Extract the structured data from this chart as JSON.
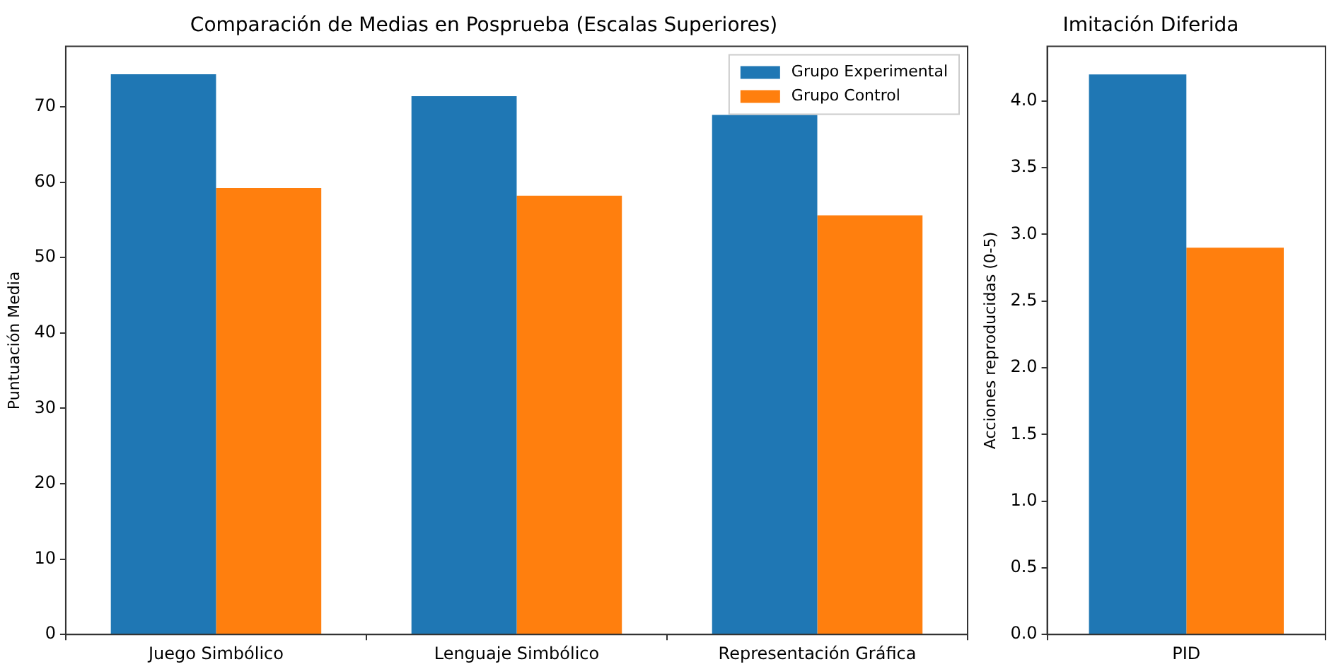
{
  "chart_data": [
    {
      "type": "bar",
      "title": "Comparación de Medias en Posprueba (Escalas Superiores)",
      "ylabel": "Puntuación Media",
      "categories": [
        "Juego Simbólico",
        "Lenguaje Simbólico",
        "Representación Gráfica"
      ],
      "series": [
        {
          "name": "Grupo Experimental",
          "color": "#1f77b4",
          "values": [
            74.3,
            71.4,
            68.9
          ]
        },
        {
          "name": "Grupo Control",
          "color": "#ff7f0e",
          "values": [
            59.2,
            58.2,
            55.6
          ]
        }
      ],
      "ylim": [
        0,
        78
      ],
      "yticks": [
        0,
        10,
        20,
        30,
        40,
        50,
        60,
        70
      ],
      "grid": false,
      "legend": "top right"
    },
    {
      "type": "bar",
      "title": "Imitación Diferida",
      "ylabel": "Acciones reproducidas (0-5)",
      "categories": [
        "PID"
      ],
      "series": [
        {
          "color": "#1f77b4",
          "values": [
            4.2
          ]
        },
        {
          "color": "#ff7f0e",
          "values": [
            2.9
          ]
        }
      ],
      "ylim": [
        0,
        4.41
      ],
      "yticks": [
        {
          "value": 0,
          "label": "0.0"
        },
        {
          "value": 0.5,
          "label": "0.5"
        },
        {
          "value": 1,
          "label": "1.0"
        },
        {
          "value": 1.5,
          "label": "1.5"
        },
        {
          "value": 2,
          "label": "2.0"
        },
        {
          "value": 2.5,
          "label": "2.5"
        },
        {
          "value": 3,
          "label": "3.0"
        },
        {
          "value": 3.5,
          "label": "3.5"
        },
        {
          "value": 4,
          "label": "4.0"
        }
      ],
      "grid": false,
      "legend": false
    }
  ]
}
